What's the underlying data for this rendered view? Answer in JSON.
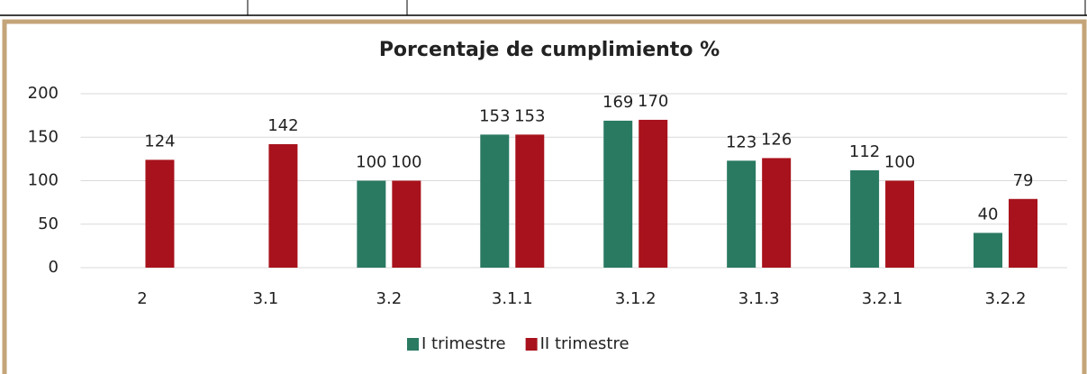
{
  "chart_data": {
    "type": "bar",
    "title": "Porcentaje de cumplimiento %",
    "categories": [
      "2",
      "3.1",
      "3.2",
      "3.1.1",
      "3.1.2",
      "3.1.3",
      "3.2.1",
      "3.2.2"
    ],
    "series": [
      {
        "name": "I trimestre",
        "color": "#2a7a62",
        "values": [
          null,
          null,
          100,
          153,
          169,
          123,
          112,
          40
        ]
      },
      {
        "name": "II trimestre",
        "color": "#a8121c",
        "values": [
          124,
          142,
          100,
          153,
          170,
          126,
          100,
          79
        ]
      }
    ],
    "ylim": [
      0,
      200
    ],
    "yticks": [
      0,
      50,
      100,
      150,
      200
    ],
    "grid": true,
    "legend": "bottom"
  }
}
